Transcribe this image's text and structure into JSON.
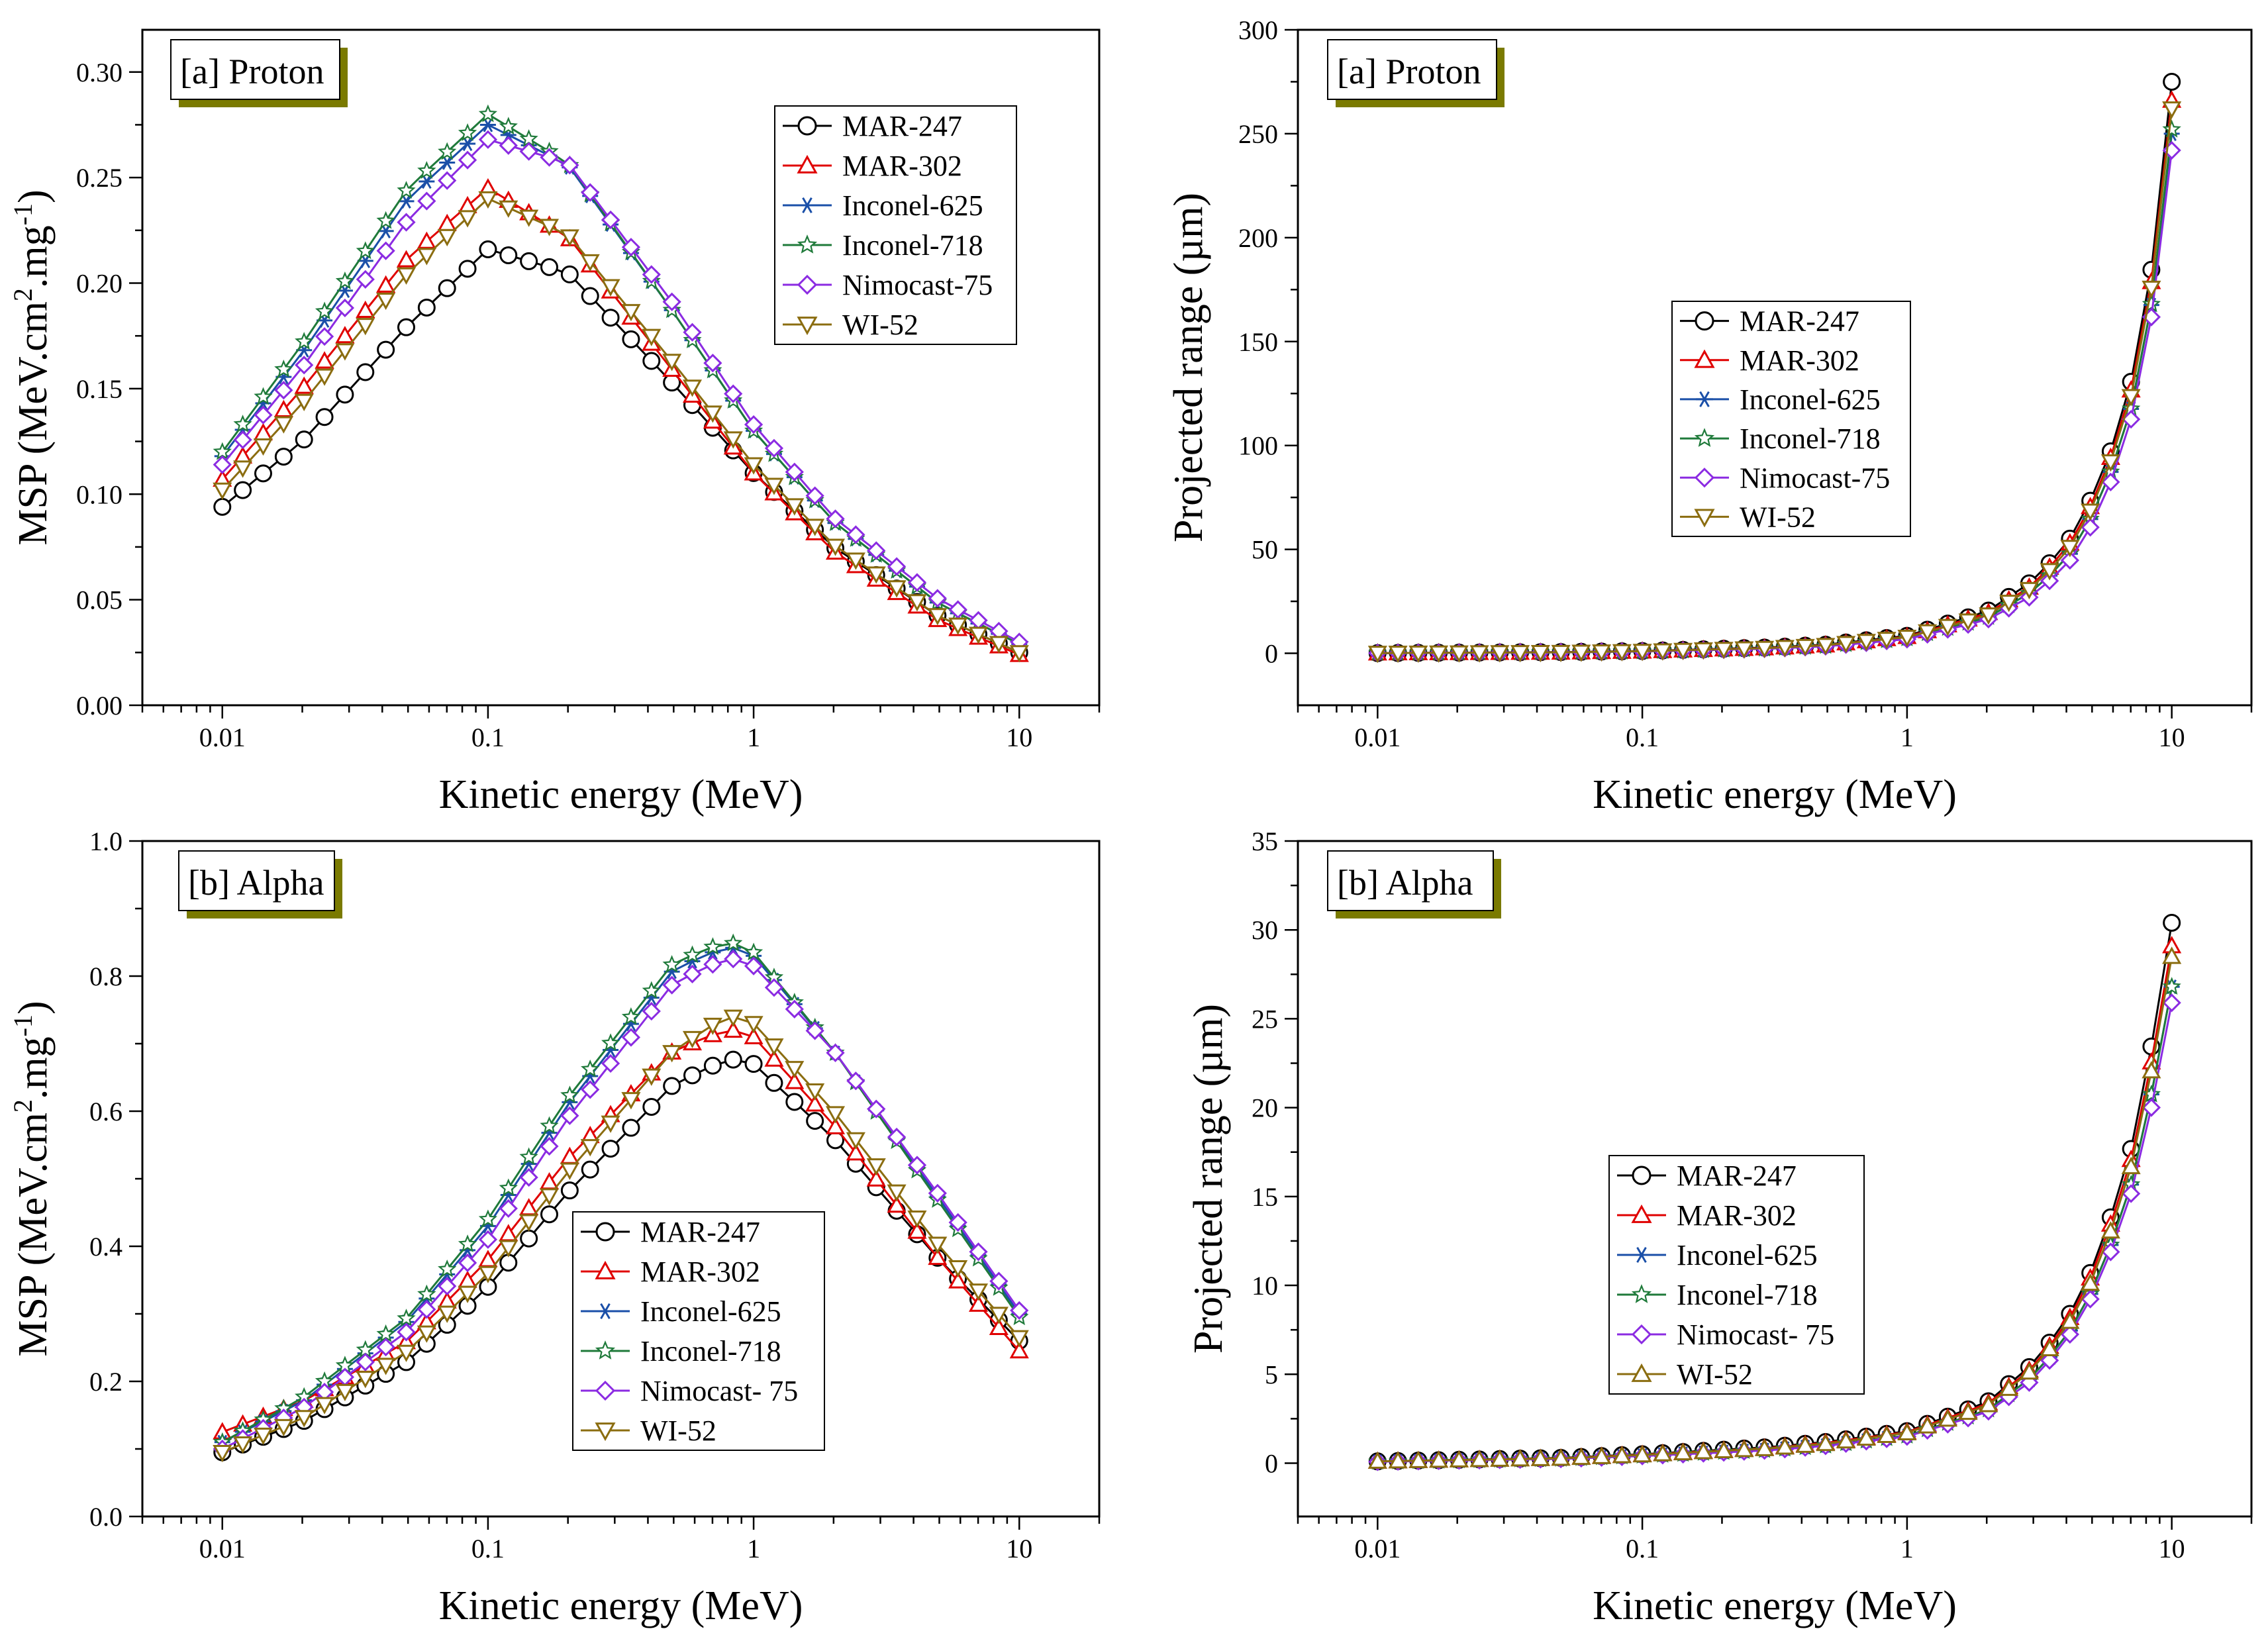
{
  "figure": {
    "series_names": [
      "MAR-247",
      "MAR-302",
      "Inconel-625",
      "Inconel-718",
      "Nimocast-75",
      "WI-52"
    ],
    "colors": {
      "MAR-247": "#000000",
      "MAR-302": "#e00000",
      "Inconel-625": "#1a4fa8",
      "Inconel-718": "#1f7a3a",
      "Nimocast-75": "#8b2be2",
      "WI-52": "#8b6d10"
    },
    "tag_shadow_color": "#7a7a00"
  },
  "chart_data": [
    {
      "id": "proton-msp",
      "type": "line",
      "panel_tag": "[a] Proton",
      "xlabel": "Kinetic energy (MeV)",
      "ylabel_parts": [
        "MSP (MeV.cm",
        "2",
        ".mg",
        "-1",
        ")"
      ],
      "xscale": "log",
      "xlim": [
        0.005,
        20
      ],
      "ylim": [
        0.0,
        0.32
      ],
      "x_ticks": [
        0.01,
        0.1,
        1,
        10
      ],
      "x_tick_labels": [
        "0.01",
        "0.1",
        "1",
        "10"
      ],
      "y_ticks": [
        0.0,
        0.05,
        0.1,
        0.15,
        0.2,
        0.25,
        0.3
      ],
      "y_tick_labels": [
        "0.00",
        "0.05",
        "0.10",
        "0.15",
        "0.20",
        "0.25",
        "0.30"
      ],
      "legend": {
        "position": "top-right",
        "entries": [
          "MAR-247",
          "MAR-302",
          "Inconel-625",
          "Inconel-718",
          "Nimocast-75",
          "WI-52"
        ]
      },
      "x_knots": [
        0.01,
        0.02,
        0.05,
        0.1,
        0.2,
        0.5,
        1,
        2,
        5,
        10
      ],
      "series": [
        {
          "name": "MAR-247",
          "marker": "circle",
          "values": [
            0.094,
            0.125,
            0.18,
            0.216,
            0.205,
            0.152,
            0.11,
            0.075,
            0.042,
            0.025
          ]
        },
        {
          "name": "MAR-302",
          "marker": "triangle-up",
          "values": [
            0.107,
            0.15,
            0.212,
            0.245,
            0.222,
            0.158,
            0.11,
            0.073,
            0.04,
            0.024
          ]
        },
        {
          "name": "Inconel-625",
          "marker": "asterisk",
          "values": [
            0.118,
            0.167,
            0.24,
            0.275,
            0.256,
            0.186,
            0.13,
            0.087,
            0.048,
            0.029
          ]
        },
        {
          "name": "Inconel-718",
          "marker": "star",
          "values": [
            0.12,
            0.171,
            0.245,
            0.28,
            0.257,
            0.186,
            0.13,
            0.087,
            0.048,
            0.029
          ]
        },
        {
          "name": "Nimocast-75",
          "marker": "diamond",
          "values": [
            0.114,
            0.16,
            0.23,
            0.268,
            0.257,
            0.19,
            0.133,
            0.089,
            0.05,
            0.03
          ]
        },
        {
          "name": "WI-52",
          "marker": "triangle-down",
          "values": [
            0.102,
            0.143,
            0.205,
            0.24,
            0.223,
            0.162,
            0.114,
            0.076,
            0.042,
            0.025
          ]
        }
      ]
    },
    {
      "id": "proton-range",
      "type": "line",
      "panel_tag": "[a] Proton",
      "xlabel": "Kinetic energy (MeV)",
      "ylabel_parts": [
        "Projected range (µm)"
      ],
      "xscale": "log",
      "xlim": [
        0.005,
        20
      ],
      "ylim": [
        -25,
        300
      ],
      "x_ticks": [
        0.01,
        0.1,
        1,
        10
      ],
      "x_tick_labels": [
        "0.01",
        "0.1",
        "1",
        "10"
      ],
      "y_ticks": [
        0,
        50,
        100,
        150,
        200,
        250,
        300
      ],
      "y_tick_labels": [
        "0",
        "50",
        "100",
        "150",
        "200",
        "250",
        "300"
      ],
      "legend": {
        "position": "center-left",
        "entries": [
          "MAR-247",
          "MAR-302",
          "Inconel-625",
          "Inconel-718",
          "Nimocast-75",
          "WI-52"
        ]
      },
      "x_knots": [
        0.01,
        0.05,
        0.1,
        0.3,
        0.5,
        1,
        2,
        3,
        4,
        5,
        6,
        7,
        8,
        9,
        10
      ],
      "series": [
        {
          "name": "MAR-247",
          "marker": "circle",
          "values": [
            0.1,
            0.6,
            1.1,
            2.8,
            4.2,
            8.4,
            20,
            35,
            52,
            75,
            100,
            130,
            165,
            215,
            275
          ]
        },
        {
          "name": "MAR-302",
          "marker": "triangle-up",
          "values": [
            0.1,
            0.5,
            1.0,
            2.6,
            4.0,
            8.0,
            19,
            33,
            50,
            72,
            97,
            126,
            160,
            208,
            266
          ]
        },
        {
          "name": "Inconel-625",
          "marker": "asterisk",
          "values": [
            0.1,
            0.5,
            0.9,
            2.3,
            3.6,
            7.2,
            17,
            30,
            45,
            66,
            90,
            117,
            150,
            195,
            250
          ]
        },
        {
          "name": "Inconel-718",
          "marker": "star",
          "values": [
            0.1,
            0.5,
            0.9,
            2.3,
            3.6,
            7.2,
            17,
            30,
            45,
            66,
            90,
            117,
            150,
            196,
            252
          ]
        },
        {
          "name": "Nimocast-75",
          "marker": "diamond",
          "values": [
            0.1,
            0.5,
            0.9,
            2.2,
            3.4,
            6.8,
            16,
            28,
            42,
            62,
            85,
            112,
            145,
            188,
            242
          ]
        },
        {
          "name": "WI-52",
          "marker": "triangle-down",
          "values": [
            0.1,
            0.5,
            1.0,
            2.5,
            3.9,
            7.8,
            18,
            32,
            48,
            70,
            95,
            123,
            157,
            205,
            262
          ]
        }
      ]
    },
    {
      "id": "alpha-msp",
      "type": "line",
      "panel_tag": "[b] Alpha",
      "xlabel": "Kinetic energy (MeV)",
      "ylabel_parts": [
        "MSP (MeV.cm",
        "2",
        ".mg",
        "-1",
        ")"
      ],
      "xscale": "log",
      "xlim": [
        0.005,
        20
      ],
      "ylim": [
        0.0,
        1.0
      ],
      "x_ticks": [
        0.01,
        0.1,
        1,
        10
      ],
      "x_tick_labels": [
        "0.01",
        "0.1",
        "1",
        "10"
      ],
      "y_ticks": [
        0.0,
        0.2,
        0.4,
        0.6,
        0.8,
        1.0
      ],
      "y_tick_labels": [
        "0.0",
        "0.2",
        "0.4",
        "0.6",
        "0.8",
        "1.0"
      ],
      "legend": {
        "position": "bottom-center",
        "entries": [
          "MAR-247",
          "MAR-302",
          "Inconel-625",
          "Inconel-718",
          "Nimocast- 75",
          "WI-52"
        ]
      },
      "x_knots": [
        0.01,
        0.02,
        0.05,
        0.1,
        0.2,
        0.5,
        0.8,
        1,
        2,
        5,
        10
      ],
      "series": [
        {
          "name": "MAR-247",
          "marker": "circle",
          "values": [
            0.095,
            0.14,
            0.23,
            0.34,
            0.48,
            0.64,
            0.678,
            0.67,
            0.56,
            0.38,
            0.26
          ]
        },
        {
          "name": "MAR-302",
          "marker": "triangle-up",
          "values": [
            0.125,
            0.17,
            0.26,
            0.38,
            0.53,
            0.69,
            0.722,
            0.71,
            0.58,
            0.38,
            0.245
          ]
        },
        {
          "name": "Inconel-625",
          "marker": "asterisk",
          "values": [
            0.11,
            0.17,
            0.29,
            0.43,
            0.61,
            0.81,
            0.845,
            0.83,
            0.69,
            0.47,
            0.3
          ]
        },
        {
          "name": "Inconel-718",
          "marker": "star",
          "values": [
            0.11,
            0.175,
            0.295,
            0.44,
            0.62,
            0.82,
            0.852,
            0.835,
            0.69,
            0.465,
            0.295
          ]
        },
        {
          "name": "Nimocast-75",
          "marker": "diamond",
          "values": [
            0.1,
            0.16,
            0.275,
            0.41,
            0.59,
            0.79,
            0.828,
            0.815,
            0.69,
            0.475,
            0.305
          ]
        },
        {
          "name": "WI-52",
          "marker": "triangle-down",
          "values": [
            0.095,
            0.145,
            0.245,
            0.36,
            0.51,
            0.69,
            0.742,
            0.73,
            0.6,
            0.4,
            0.265
          ]
        }
      ]
    },
    {
      "id": "alpha-range",
      "type": "line",
      "panel_tag": "[b] Alpha",
      "xlabel": "Kinetic energy (MeV)",
      "ylabel_parts": [
        "Projected range (µm)"
      ],
      "xscale": "log",
      "xlim": [
        0.005,
        20
      ],
      "ylim": [
        -3,
        35
      ],
      "x_ticks": [
        0.01,
        0.1,
        1,
        10
      ],
      "x_tick_labels": [
        "0.01",
        "0.1",
        "1",
        "10"
      ],
      "y_ticks": [
        0,
        5,
        10,
        15,
        20,
        25,
        30,
        35
      ],
      "y_tick_labels": [
        "0",
        "5",
        "10",
        "15",
        "20",
        "25",
        "30",
        "35"
      ],
      "legend": {
        "position": "center-left",
        "entries": [
          "MAR-247",
          "MAR-302",
          "Inconel-625",
          "Inconel-718",
          "Nimocast- 75",
          "WI-52"
        ]
      },
      "x_knots": [
        0.01,
        0.05,
        0.1,
        0.3,
        0.5,
        1,
        2,
        3,
        4,
        5,
        6,
        7,
        8,
        9,
        10
      ],
      "series": [
        {
          "name": "MAR-247",
          "marker": "circle",
          "values": [
            0.1,
            0.3,
            0.5,
            0.9,
            1.2,
            1.8,
            3.4,
            5.6,
            8.0,
            10.9,
            14.2,
            17.6,
            21.8,
            26.0,
            30.4
          ]
        },
        {
          "name": "MAR-302",
          "marker": "triangle-up",
          "values": [
            0.1,
            0.28,
            0.48,
            0.85,
            1.15,
            1.75,
            3.3,
            5.4,
            7.8,
            10.6,
            13.8,
            17.0,
            21.0,
            25.0,
            29.1
          ]
        },
        {
          "name": "Inconel-625",
          "marker": "asterisk",
          "values": [
            0.08,
            0.25,
            0.42,
            0.75,
            1.0,
            1.55,
            2.95,
            4.9,
            7.1,
            9.7,
            12.6,
            15.6,
            19.3,
            23.0,
            26.8
          ]
        },
        {
          "name": "Inconel-718",
          "marker": "star",
          "values": [
            0.08,
            0.25,
            0.42,
            0.75,
            1.0,
            1.55,
            2.95,
            4.9,
            7.1,
            9.7,
            12.6,
            15.6,
            19.3,
            23.0,
            26.8
          ]
        },
        {
          "name": "Nimocast-75",
          "marker": "diamond",
          "values": [
            0.08,
            0.24,
            0.4,
            0.72,
            0.98,
            1.5,
            2.85,
            4.7,
            6.9,
            9.4,
            12.2,
            15.1,
            18.6,
            22.2,
            25.9
          ]
        },
        {
          "name": "WI-52",
          "marker": "triangle-up",
          "values": [
            0.1,
            0.27,
            0.46,
            0.82,
            1.1,
            1.7,
            3.2,
            5.3,
            7.6,
            10.3,
            13.4,
            16.6,
            20.5,
            24.5,
            28.5
          ]
        }
      ]
    }
  ]
}
